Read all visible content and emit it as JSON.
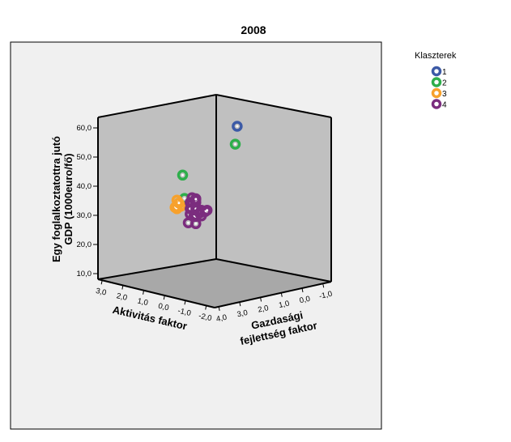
{
  "chart_data": {
    "type": "scatter",
    "title": "2008",
    "zlabel_line1": "Egy foglalkoztatottra jutó",
    "zlabel_line2": "GDP (1000euro/fő)",
    "xlabel": "Aktivitás faktor",
    "ylabel_line1": "Gazdasági",
    "ylabel_line2": "fejlettség faktor",
    "z_ticks": [
      "10,0",
      "20,0",
      "30,0",
      "40,0",
      "50,0",
      "60,0"
    ],
    "x_ticks": [
      "3,0",
      "2,0",
      "1,0",
      "0,0",
      "-1,0",
      "-2,0"
    ],
    "y_ticks": [
      "4,0",
      "3,0",
      "2,0",
      "1,0",
      "0,0",
      "-1,0"
    ],
    "zlim": [
      8,
      62
    ],
    "legend": {
      "title": "Klaszterek",
      "placement": "top-right",
      "items": [
        {
          "label": "1",
          "color": "#3c5aa6"
        },
        {
          "label": "2",
          "color": "#2eae4b"
        },
        {
          "label": "3",
          "color": "#f7a12c"
        },
        {
          "label": "4",
          "color": "#7b2d7e"
        }
      ]
    },
    "series": [
      {
        "name": "1",
        "color": "#3c5aa6",
        "points": [
          {
            "x": 2.6,
            "y": 2.4,
            "z": 58.5
          }
        ]
      },
      {
        "name": "2",
        "color": "#2eae4b",
        "points": [
          {
            "x": 2.2,
            "y": 2.1,
            "z": 51.5
          },
          {
            "x": 0.8,
            "y": 3.5,
            "z": 41.0
          },
          {
            "x": 0.6,
            "y": 3.2,
            "z": 32.5
          }
        ]
      },
      {
        "name": "3",
        "color": "#f7a12c",
        "points": [
          {
            "x": 0.2,
            "y": 3.0,
            "z": 29.0
          },
          {
            "x": 0.0,
            "y": 2.9,
            "z": 29.5
          },
          {
            "x": -0.2,
            "y": 2.8,
            "z": 28.0
          },
          {
            "x": -0.3,
            "y": 2.7,
            "z": 27.0
          },
          {
            "x": -0.5,
            "y": 2.6,
            "z": 27.0
          },
          {
            "x": -0.6,
            "y": 2.4,
            "z": 29.0
          },
          {
            "x": -0.7,
            "y": 2.3,
            "z": 26.5
          },
          {
            "x": -0.9,
            "y": 2.0,
            "z": 27.0
          }
        ]
      },
      {
        "name": "4",
        "color": "#7b2d7e",
        "points": [
          {
            "x": -0.8,
            "y": 1.6,
            "z": 20.0
          },
          {
            "x": -0.9,
            "y": 1.4,
            "z": 22.5
          },
          {
            "x": -1.0,
            "y": 1.3,
            "z": 26.0
          },
          {
            "x": -1.0,
            "y": 1.2,
            "z": 27.5
          },
          {
            "x": -1.1,
            "y": 1.1,
            "z": 25.0
          },
          {
            "x": -1.0,
            "y": 1.0,
            "z": 21.0
          },
          {
            "x": -1.2,
            "y": 0.9,
            "z": 20.5
          },
          {
            "x": -1.2,
            "y": 0.8,
            "z": 18.0
          },
          {
            "x": -1.3,
            "y": 0.9,
            "z": 23.0
          },
          {
            "x": -1.3,
            "y": 0.7,
            "z": 26.0
          },
          {
            "x": -1.4,
            "y": 0.6,
            "z": 24.5
          },
          {
            "x": -1.5,
            "y": 0.8,
            "z": 22.5
          },
          {
            "x": -1.5,
            "y": 0.5,
            "z": 20.0
          },
          {
            "x": -1.6,
            "y": 0.4,
            "z": 25.0
          },
          {
            "x": -1.7,
            "y": 0.3,
            "z": 21.5
          },
          {
            "x": -1.6,
            "y": 0.1,
            "z": 19.0
          },
          {
            "x": -1.8,
            "y": 0.0,
            "z": 19.5
          },
          {
            "x": -1.9,
            "y": -0.2,
            "z": 20.0
          },
          {
            "x": -2.0,
            "y": -0.5,
            "z": 19.0
          },
          {
            "x": -2.1,
            "y": -0.7,
            "z": 19.0
          }
        ]
      }
    ]
  },
  "colors": {
    "outer_background": "#f0f0f0",
    "plot_fill": "#c0c0c0",
    "floor_fill": "#a8a8a8"
  }
}
